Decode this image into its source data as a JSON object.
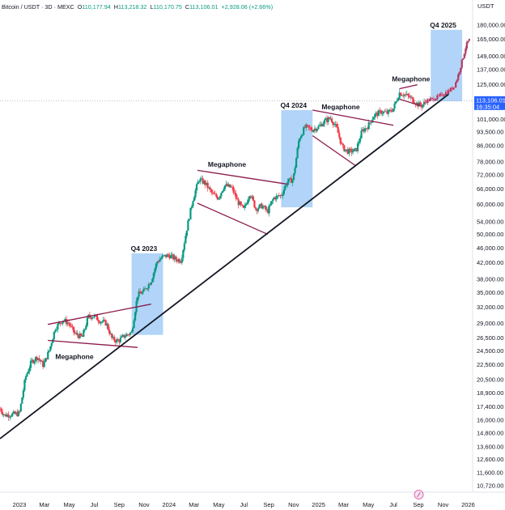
{
  "header": {
    "symbol": "Bitcoin / USDT · 3D · MEXC",
    "open_label": "O",
    "open_value": "110,177.94",
    "high_label": "H",
    "high_value": "113,218.32",
    "low_label": "L",
    "low_value": "110,170.75",
    "close_label": "C",
    "close_value": "113,106.01",
    "change_value": "+2,928.06 (+2.66%)"
  },
  "chart_data": {
    "type": "candlestick",
    "currency_label": "USDT",
    "x_ticks": [
      "2023",
      "Mar",
      "May",
      "Jul",
      "Sep",
      "Nov",
      "2024",
      "Mar",
      "May",
      "Jul",
      "Sep",
      "Nov",
      "2025",
      "Mar",
      "May",
      "Jul",
      "Sep",
      "Nov",
      "2026"
    ],
    "x_tick_values": [
      2023.0,
      2023.167,
      2023.333,
      2023.5,
      2023.667,
      2023.833,
      2024.0,
      2024.167,
      2024.333,
      2024.5,
      2024.667,
      2024.833,
      2025.0,
      2025.167,
      2025.333,
      2025.5,
      2025.667,
      2025.833,
      2026.0
    ],
    "x_range": [
      2022.87,
      2026.03
    ],
    "y_scale": "log",
    "y_ticks": [
      180000,
      165000,
      149000,
      137000,
      125000,
      101000,
      93500,
      86000,
      78000,
      72000,
      66000,
      60000,
      54000,
      50000,
      46000,
      42000,
      38000,
      35000,
      32000,
      29000,
      26500,
      24500,
      22500,
      20500,
      18900,
      17400,
      16000,
      14800,
      13600,
      12600,
      11600,
      10720
    ],
    "y_tick_labels": [
      "180,000.00",
      "165,000.00",
      "149,000.00",
      "137,000.00",
      "125,000.00",
      "101,000.00",
      "93,500.00",
      "86,000.00",
      "78,000.00",
      "72,000.00",
      "66,000.00",
      "60,000.00",
      "54,000.00",
      "50,000.00",
      "46,000.00",
      "42,000.00",
      "38,000.00",
      "35,000.00",
      "32,000.00",
      "29,000.00",
      "26,500.00",
      "24,500.00",
      "22,500.00",
      "20,500.00",
      "18,900.00",
      "17,400.00",
      "16,000.00",
      "14,800.00",
      "13,600.00",
      "12,600.00",
      "11,600.00",
      "10,720.00"
    ],
    "y_range": [
      10300,
      196000
    ],
    "last_price": 113106.01,
    "last_price_label": "113,106.01",
    "countdown_label": "16:35:04",
    "price_path": [
      [
        2022.87,
        17200
      ],
      [
        2022.9,
        16500
      ],
      [
        2022.96,
        16600
      ],
      [
        2023.0,
        16700
      ],
      [
        2023.04,
        20800
      ],
      [
        2023.08,
        22900
      ],
      [
        2023.12,
        23600
      ],
      [
        2023.16,
        22400
      ],
      [
        2023.2,
        24600
      ],
      [
        2023.24,
        28200
      ],
      [
        2023.29,
        29600
      ],
      [
        2023.33,
        29000
      ],
      [
        2023.37,
        27200
      ],
      [
        2023.42,
        26600
      ],
      [
        2023.46,
        30200
      ],
      [
        2023.5,
        30300
      ],
      [
        2023.54,
        29400
      ],
      [
        2023.58,
        29000
      ],
      [
        2023.62,
        26300
      ],
      [
        2023.66,
        26000
      ],
      [
        2023.7,
        26800
      ],
      [
        2023.75,
        27400
      ],
      [
        2023.79,
        34500
      ],
      [
        2023.83,
        35200
      ],
      [
        2023.88,
        37600
      ],
      [
        2023.92,
        42300
      ],
      [
        2023.96,
        43600
      ],
      [
        2024.0,
        44000
      ],
      [
        2024.04,
        43000
      ],
      [
        2024.08,
        42600
      ],
      [
        2024.12,
        52000
      ],
      [
        2024.16,
        62000
      ],
      [
        2024.2,
        70000
      ],
      [
        2024.24,
        68500
      ],
      [
        2024.29,
        64000
      ],
      [
        2024.33,
        62500
      ],
      [
        2024.37,
        67500
      ],
      [
        2024.42,
        66500
      ],
      [
        2024.46,
        61000
      ],
      [
        2024.5,
        58000
      ],
      [
        2024.54,
        64500
      ],
      [
        2024.58,
        58500
      ],
      [
        2024.62,
        59500
      ],
      [
        2024.66,
        57500
      ],
      [
        2024.7,
        62500
      ],
      [
        2024.75,
        63500
      ],
      [
        2024.79,
        69000
      ],
      [
        2024.83,
        70000
      ],
      [
        2024.87,
        90000
      ],
      [
        2024.91,
        96500
      ],
      [
        2024.96,
        95000
      ],
      [
        2025.0,
        96500
      ],
      [
        2025.04,
        100000
      ],
      [
        2025.08,
        102000
      ],
      [
        2025.12,
        96000
      ],
      [
        2025.16,
        85000
      ],
      [
        2025.2,
        83000
      ],
      [
        2025.25,
        83500
      ],
      [
        2025.29,
        94000
      ],
      [
        2025.33,
        97000
      ],
      [
        2025.37,
        103500
      ],
      [
        2025.42,
        106000
      ],
      [
        2025.46,
        105000
      ],
      [
        2025.5,
        108000
      ],
      [
        2025.54,
        119000
      ],
      [
        2025.58,
        117500
      ],
      [
        2025.62,
        115000
      ],
      [
        2025.66,
        111000
      ],
      [
        2025.69,
        110000
      ],
      [
        2025.72,
        113106
      ]
    ],
    "projection_path": [
      [
        2025.72,
        113106
      ],
      [
        2025.76,
        114500
      ],
      [
        2025.8,
        116000
      ],
      [
        2025.84,
        118500
      ],
      [
        2025.88,
        121000
      ],
      [
        2025.91,
        124500
      ],
      [
        2025.93,
        131000
      ],
      [
        2025.95,
        140000
      ],
      [
        2025.97,
        150000
      ],
      [
        2025.985,
        158000
      ],
      [
        2026.0,
        163000
      ],
      [
        2026.01,
        164500
      ]
    ],
    "trendline": [
      [
        2022.87,
        14300
      ],
      [
        2025.87,
        118000
      ]
    ],
    "q4_boxes": [
      {
        "label": "Q4 2023",
        "x0": 2023.75,
        "x1": 2023.96,
        "y0": 27000,
        "y1": 44500
      },
      {
        "label": "Q4 2024",
        "x0": 2024.75,
        "x1": 2024.96,
        "y0": 59000,
        "y1": 107000
      },
      {
        "label": "Q4 2025",
        "x0": 2025.75,
        "x1": 2025.96,
        "y0": 113000,
        "y1": 175000
      }
    ],
    "megaphones": [
      {
        "label": "Megaphone",
        "label_pos": "below",
        "label_at": [
          2023.24,
          23300
        ],
        "upper": [
          [
            2023.19,
            28800
          ],
          [
            2023.88,
            32600
          ]
        ],
        "lower": [
          [
            2023.19,
            26100
          ],
          [
            2023.79,
            25000
          ]
        ]
      },
      {
        "label": "Megaphone",
        "label_pos": "above",
        "label_at": [
          2024.26,
          75700
        ],
        "upper": [
          [
            2024.19,
            74000
          ],
          [
            2024.79,
            68000
          ]
        ],
        "lower": [
          [
            2024.19,
            60500
          ],
          [
            2024.66,
            50000
          ]
        ]
      },
      {
        "label": "Megaphone",
        "label_pos": "above",
        "label_at": [
          2025.02,
          107500
        ],
        "upper": [
          [
            2024.96,
            107000
          ],
          [
            2025.5,
            97500
          ]
        ],
        "lower": [
          [
            2024.96,
            91500
          ],
          [
            2025.25,
            76000
          ]
        ]
      },
      {
        "label": "Megaphone",
        "label_pos": "above",
        "label_at": [
          2025.49,
          127500
        ],
        "upper": [
          [
            2025.54,
            122000
          ],
          [
            2025.66,
            125000
          ]
        ],
        "lower": [
          [
            2025.54,
            114500
          ],
          [
            2025.68,
            110000
          ]
        ]
      }
    ],
    "colors": {
      "up": "#089981",
      "down": "#f23645",
      "projection": "#b03a62",
      "box": "#90c2f5",
      "megaphone": "#8b1a4b",
      "trendline": "#131722",
      "price_tag": "#2962ff",
      "grid": "#f0f3fa"
    }
  }
}
